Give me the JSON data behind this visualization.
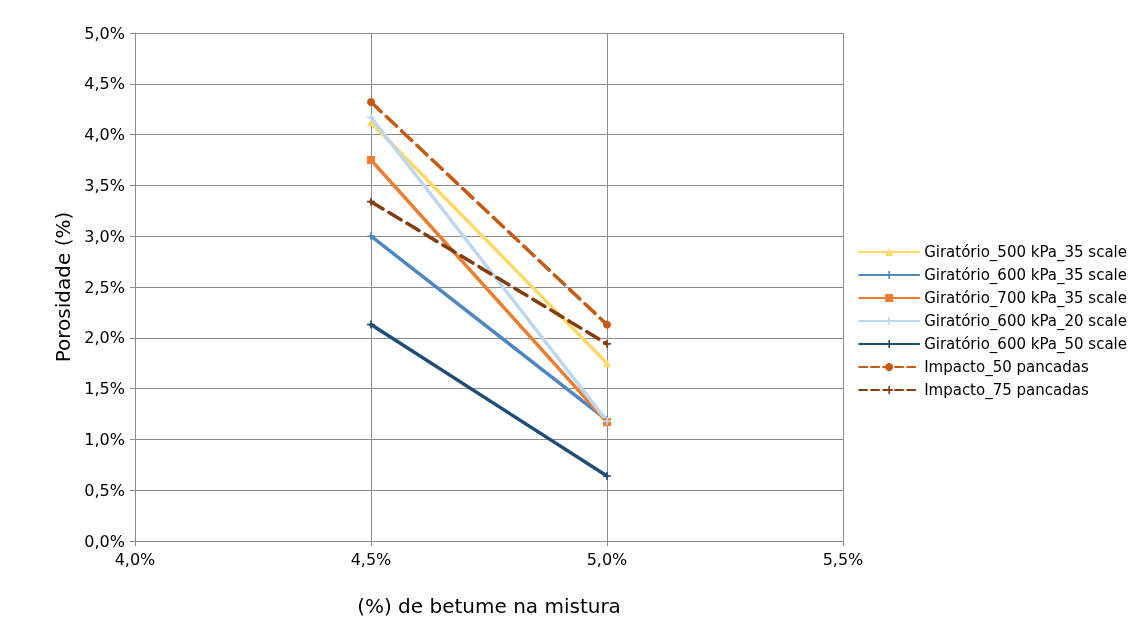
{
  "chart_data": {
    "type": "line",
    "xlabel": "(%) de betume na mistura",
    "ylabel": "Porosidade (%)",
    "x": [
      4.5,
      5.0
    ],
    "series": [
      {
        "name": "Giratório_500 kPa_35 scale",
        "color": "#ffd966",
        "marker": "triangle",
        "values": [
          4.12,
          1.75
        ]
      },
      {
        "name": "Giratório_600 kPa_35 scale",
        "color": "#4f86c0",
        "marker": "cross",
        "values": [
          3.0,
          1.19
        ]
      },
      {
        "name": "Giratório_700 kPa_35 scale",
        "color": "#ed7d31",
        "marker": "square",
        "values": [
          3.75,
          1.17
        ]
      },
      {
        "name": "Giratório_600 kPa_20 scale",
        "color": "#bdd7ee",
        "marker": "cross",
        "values": [
          4.17,
          1.18
        ]
      },
      {
        "name": "Giratório_600 kPa_50 scale",
        "color": "#1f4e79",
        "marker": "cross",
        "values": [
          2.13,
          0.64
        ]
      },
      {
        "name": "Impacto_50 pancadas",
        "color": "#c55a11",
        "marker": "circle",
        "line_style": "dashed",
        "values": [
          4.32,
          2.13
        ]
      },
      {
        "name": "Impacto_75 pancadas",
        "color": "#843c0c",
        "marker": "cross",
        "line_style": "dashed",
        "values": [
          3.34,
          1.94
        ]
      }
    ],
    "xlim": [
      4.0,
      5.5
    ],
    "xticks": [
      {
        "value": 4.0,
        "label": "4,0%"
      },
      {
        "value": 4.5,
        "label": "4,5%"
      },
      {
        "value": 5.0,
        "label": "5,0%"
      },
      {
        "value": 5.5,
        "label": "5,5%"
      }
    ],
    "ylim": [
      0,
      5
    ],
    "yticks": [
      {
        "value": 0,
        "label": "0,0%"
      },
      {
        "value": 0.5,
        "label": "0,5%"
      },
      {
        "value": 1,
        "label": "1,0%"
      },
      {
        "value": 1.5,
        "label": "1,5%"
      },
      {
        "value": 2,
        "label": "2,0%"
      },
      {
        "value": 2.5,
        "label": "2,5%"
      },
      {
        "value": 3,
        "label": "3,0%"
      },
      {
        "value": 3.5,
        "label": "3,5%"
      },
      {
        "value": 4,
        "label": "4,0%"
      },
      {
        "value": 4.5,
        "label": "4,5%"
      },
      {
        "value": 5,
        "label": "5,0%"
      }
    ],
    "grid": true,
    "legend": "right"
  }
}
